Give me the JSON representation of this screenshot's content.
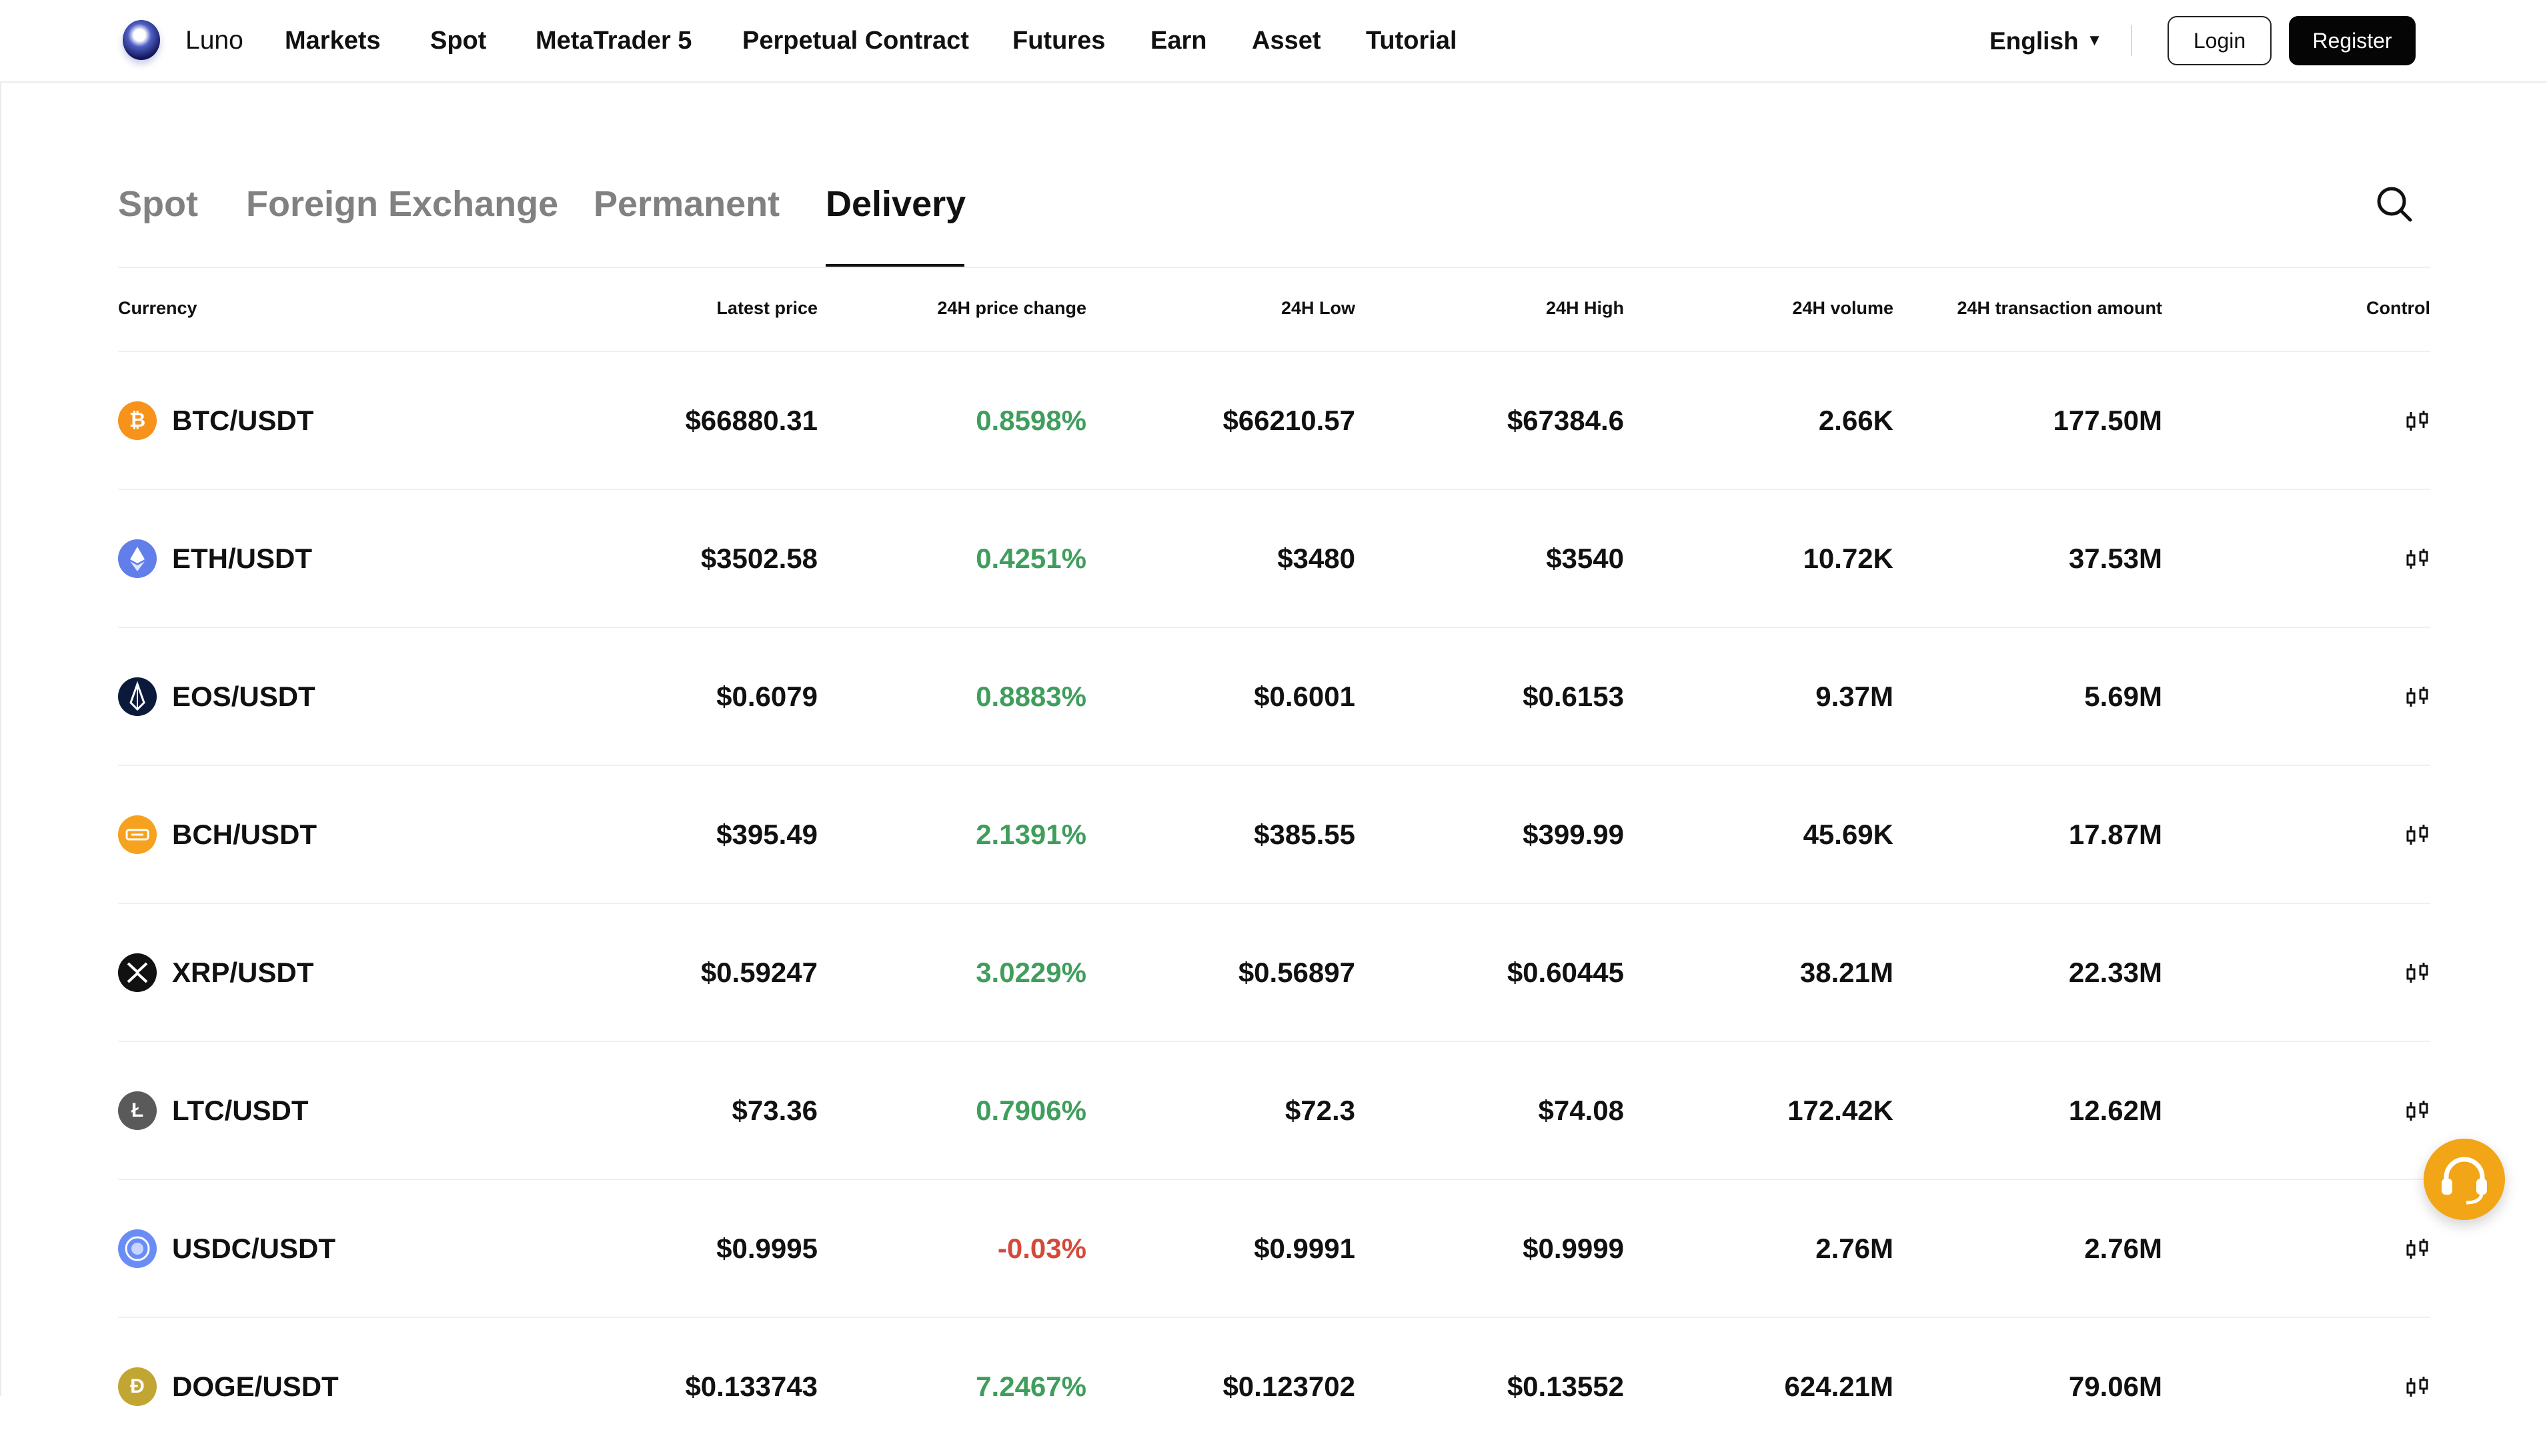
{
  "header": {
    "brand": "Luno",
    "nav": [
      {
        "label": "Markets"
      },
      {
        "label": "Spot"
      },
      {
        "label": "MetaTrader 5"
      },
      {
        "label": "Perpetual Contract"
      },
      {
        "label": "Futures"
      },
      {
        "label": "Earn"
      },
      {
        "label": "Asset"
      },
      {
        "label": "Tutorial"
      }
    ],
    "language": "English",
    "login_label": "Login",
    "register_label": "Register"
  },
  "tabs": [
    {
      "label": "Spot",
      "active": false
    },
    {
      "label": "Foreign Exchange",
      "active": false
    },
    {
      "label": "Permanent",
      "active": false
    },
    {
      "label": "Delivery",
      "active": true
    }
  ],
  "table": {
    "columns": {
      "currency": "Currency",
      "price": "Latest price",
      "change": "24H price change",
      "low": "24H Low",
      "high": "24H High",
      "volume": "24H volume",
      "amount": "24H transaction amount",
      "control": "Control"
    },
    "rows": [
      {
        "pair": "BTC/USDT",
        "icon": "bitcoin-icon",
        "icon_color": "#f7931a",
        "price": "$66880.31",
        "change": "0.8598%",
        "trend": "up",
        "low": "$66210.57",
        "high": "$67384.6",
        "volume": "2.66K",
        "amount": "177.50M"
      },
      {
        "pair": "ETH/USDT",
        "icon": "ethereum-icon",
        "icon_color": "#627eea",
        "price": "$3502.58",
        "change": "0.4251%",
        "trend": "up",
        "low": "$3480",
        "high": "$3540",
        "volume": "10.72K",
        "amount": "37.53M"
      },
      {
        "pair": "EOS/USDT",
        "icon": "eos-icon",
        "icon_color": "#0b1a3a",
        "price": "$0.6079",
        "change": "0.8883%",
        "trend": "up",
        "low": "$0.6001",
        "high": "$0.6153",
        "volume": "9.37M",
        "amount": "5.69M"
      },
      {
        "pair": "BCH/USDT",
        "icon": "bitcoin-cash-icon",
        "icon_color": "#f6a21e",
        "price": "$395.49",
        "change": "2.1391%",
        "trend": "up",
        "low": "$385.55",
        "high": "$399.99",
        "volume": "45.69K",
        "amount": "17.87M"
      },
      {
        "pair": "XRP/USDT",
        "icon": "xrp-icon",
        "icon_color": "#111111",
        "price": "$0.59247",
        "change": "3.0229%",
        "trend": "up",
        "low": "$0.56897",
        "high": "$0.60445",
        "volume": "38.21M",
        "amount": "22.33M"
      },
      {
        "pair": "LTC/USDT",
        "icon": "litecoin-icon",
        "icon_color": "#5a5a5a",
        "price": "$73.36",
        "change": "0.7906%",
        "trend": "up",
        "low": "$72.3",
        "high": "$74.08",
        "volume": "172.42K",
        "amount": "12.62M"
      },
      {
        "pair": "USDC/USDT",
        "icon": "usdc-icon",
        "icon_color": "#6a8df5",
        "price": "$0.9995",
        "change": "-0.03%",
        "trend": "down",
        "low": "$0.9991",
        "high": "$0.9999",
        "volume": "2.76M",
        "amount": "2.76M"
      },
      {
        "pair": "DOGE/USDT",
        "icon": "dogecoin-icon",
        "icon_color": "#c2a633",
        "price": "$0.133743",
        "change": "7.2467%",
        "trend": "up",
        "low": "$0.123702",
        "high": "$0.13552",
        "volume": "624.21M",
        "amount": "79.06M"
      }
    ]
  },
  "colors": {
    "up": "#3f9e5c",
    "down": "#d44a3a",
    "support_widget": "#f2a516"
  }
}
